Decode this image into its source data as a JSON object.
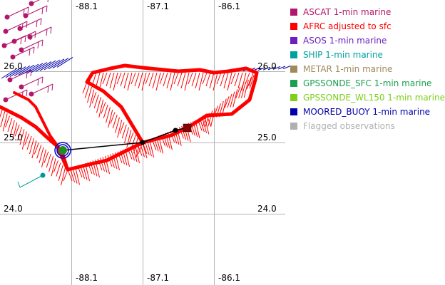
{
  "map": {
    "lon_ticks_top": [
      "-88.1",
      "-87.1",
      "-86.1"
    ],
    "lon_ticks_bottom": [
      "-88.1",
      "-87.1",
      "-86.1"
    ],
    "lat_ticks_left": [
      "26.0",
      "25.0",
      "24.0"
    ],
    "lat_ticks_right": [
      "26.0",
      "25.0",
      "24.0"
    ],
    "grid": true,
    "grid_color": "#b4b4b4",
    "track_color": "#ff0000",
    "marker_colors": {
      "center": "#228b22",
      "start_square": "#8b0000",
      "buoy_ring": "#0000cc",
      "ship_point": "#009999",
      "track_line": "#000000"
    }
  },
  "legend": [
    {
      "label": "ASCAT 1-min marine",
      "color": "#b3176b"
    },
    {
      "label": "AFRC adjusted to sfc",
      "color": "#ff0000"
    },
    {
      "label": "ASOS 1-min marine",
      "color": "#6a1fbf"
    },
    {
      "label": "SHIP 1-min marine",
      "color": "#00a0a0"
    },
    {
      "label": "METAR 1-min marine",
      "color": "#a08a5c"
    },
    {
      "label": "GPSSONDE_SFC 1-min marine",
      "color": "#1aa050"
    },
    {
      "label": "GPSSONDE_WL150 1-min marine",
      "color": "#7dcf1a"
    },
    {
      "label": "MOORED_BUOY 1-min marine",
      "color": "#0000a8"
    },
    {
      "label": "Flagged observations",
      "color": "#b0b0b0"
    }
  ]
}
